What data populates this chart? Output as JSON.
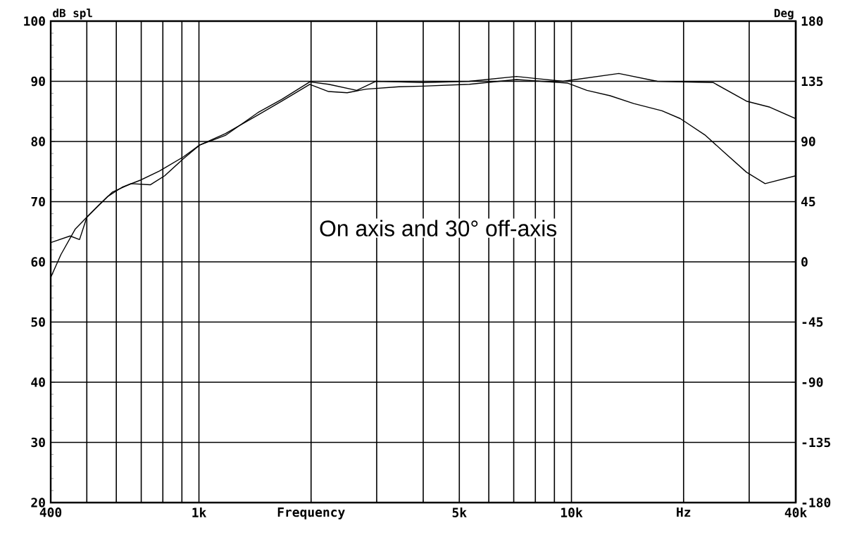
{
  "chart_data": {
    "type": "line",
    "ylabel": "dB spl",
    "y2label": "Deg",
    "annotations": [
      "On axis and 30° off-axis"
    ],
    "log": "x",
    "grid": true,
    "marker": "none",
    "line_style": "solid",
    "xlim": [
      400,
      40000
    ],
    "xticks": [
      400,
      {
        "value": 1000,
        "label": "1k"
      },
      {
        "value": 2000,
        "label": "Frequency"
      },
      {
        "value": 5000,
        "label": "5k"
      },
      {
        "value": 10000,
        "label": "10k"
      },
      {
        "value": 20000,
        "label": "Hz"
      },
      {
        "value": 40000,
        "label": "40k"
      }
    ],
    "ylim": [
      20,
      100
    ],
    "yticks": [
      20,
      30,
      40,
      50,
      60,
      70,
      80,
      90,
      100
    ],
    "y2lim": [
      -180,
      180
    ],
    "y2ticks": [
      -180,
      -135,
      -90,
      -45,
      0,
      45,
      90,
      135,
      180
    ],
    "series": [
      {
        "color": "#000000",
        "x": [
          400,
          426,
          465,
          507,
          570,
          622,
          698,
          784,
          906,
          1004,
          1177,
          1440,
          1669,
          1984,
          2229,
          2500,
          2812,
          3442,
          3990,
          5320,
          7120,
          9770,
          11000,
          12700,
          14700,
          17500,
          19600,
          22800,
          25500,
          29500,
          33100,
          40000
        ],
        "values": [
          57.4,
          61.2,
          65.4,
          67.8,
          70.9,
          72.4,
          73.6,
          75.1,
          77.4,
          79.4,
          81.3,
          84.4,
          86.7,
          89.5,
          88.3,
          88.1,
          88.7,
          89.1,
          89.2,
          89.5,
          90.3,
          89.7,
          88.5,
          87.6,
          86.3,
          85.1,
          83.8,
          81.1,
          78.4,
          74.9,
          73.0,
          74.3
        ]
      },
      {
        "color": "#000000",
        "x": [
          400,
          451,
          478,
          500,
          536,
          586,
          657,
          740,
          809,
          907,
          1004,
          1177,
          1440,
          1669,
          1984,
          2229,
          2652,
          2981,
          3442,
          3990,
          5320,
          7120,
          9490,
          13400,
          17000,
          24000,
          29500,
          34100,
          40000
        ],
        "values": [
          63.2,
          64.3,
          63.7,
          67.4,
          69.3,
          71.6,
          73.0,
          72.8,
          74.3,
          77.1,
          79.4,
          81.0,
          84.8,
          87.0,
          89.9,
          89.5,
          88.5,
          90.0,
          89.9,
          89.8,
          90.0,
          90.8,
          90.0,
          91.3,
          90.0,
          89.8,
          86.7,
          85.7,
          83.8
        ]
      }
    ]
  }
}
